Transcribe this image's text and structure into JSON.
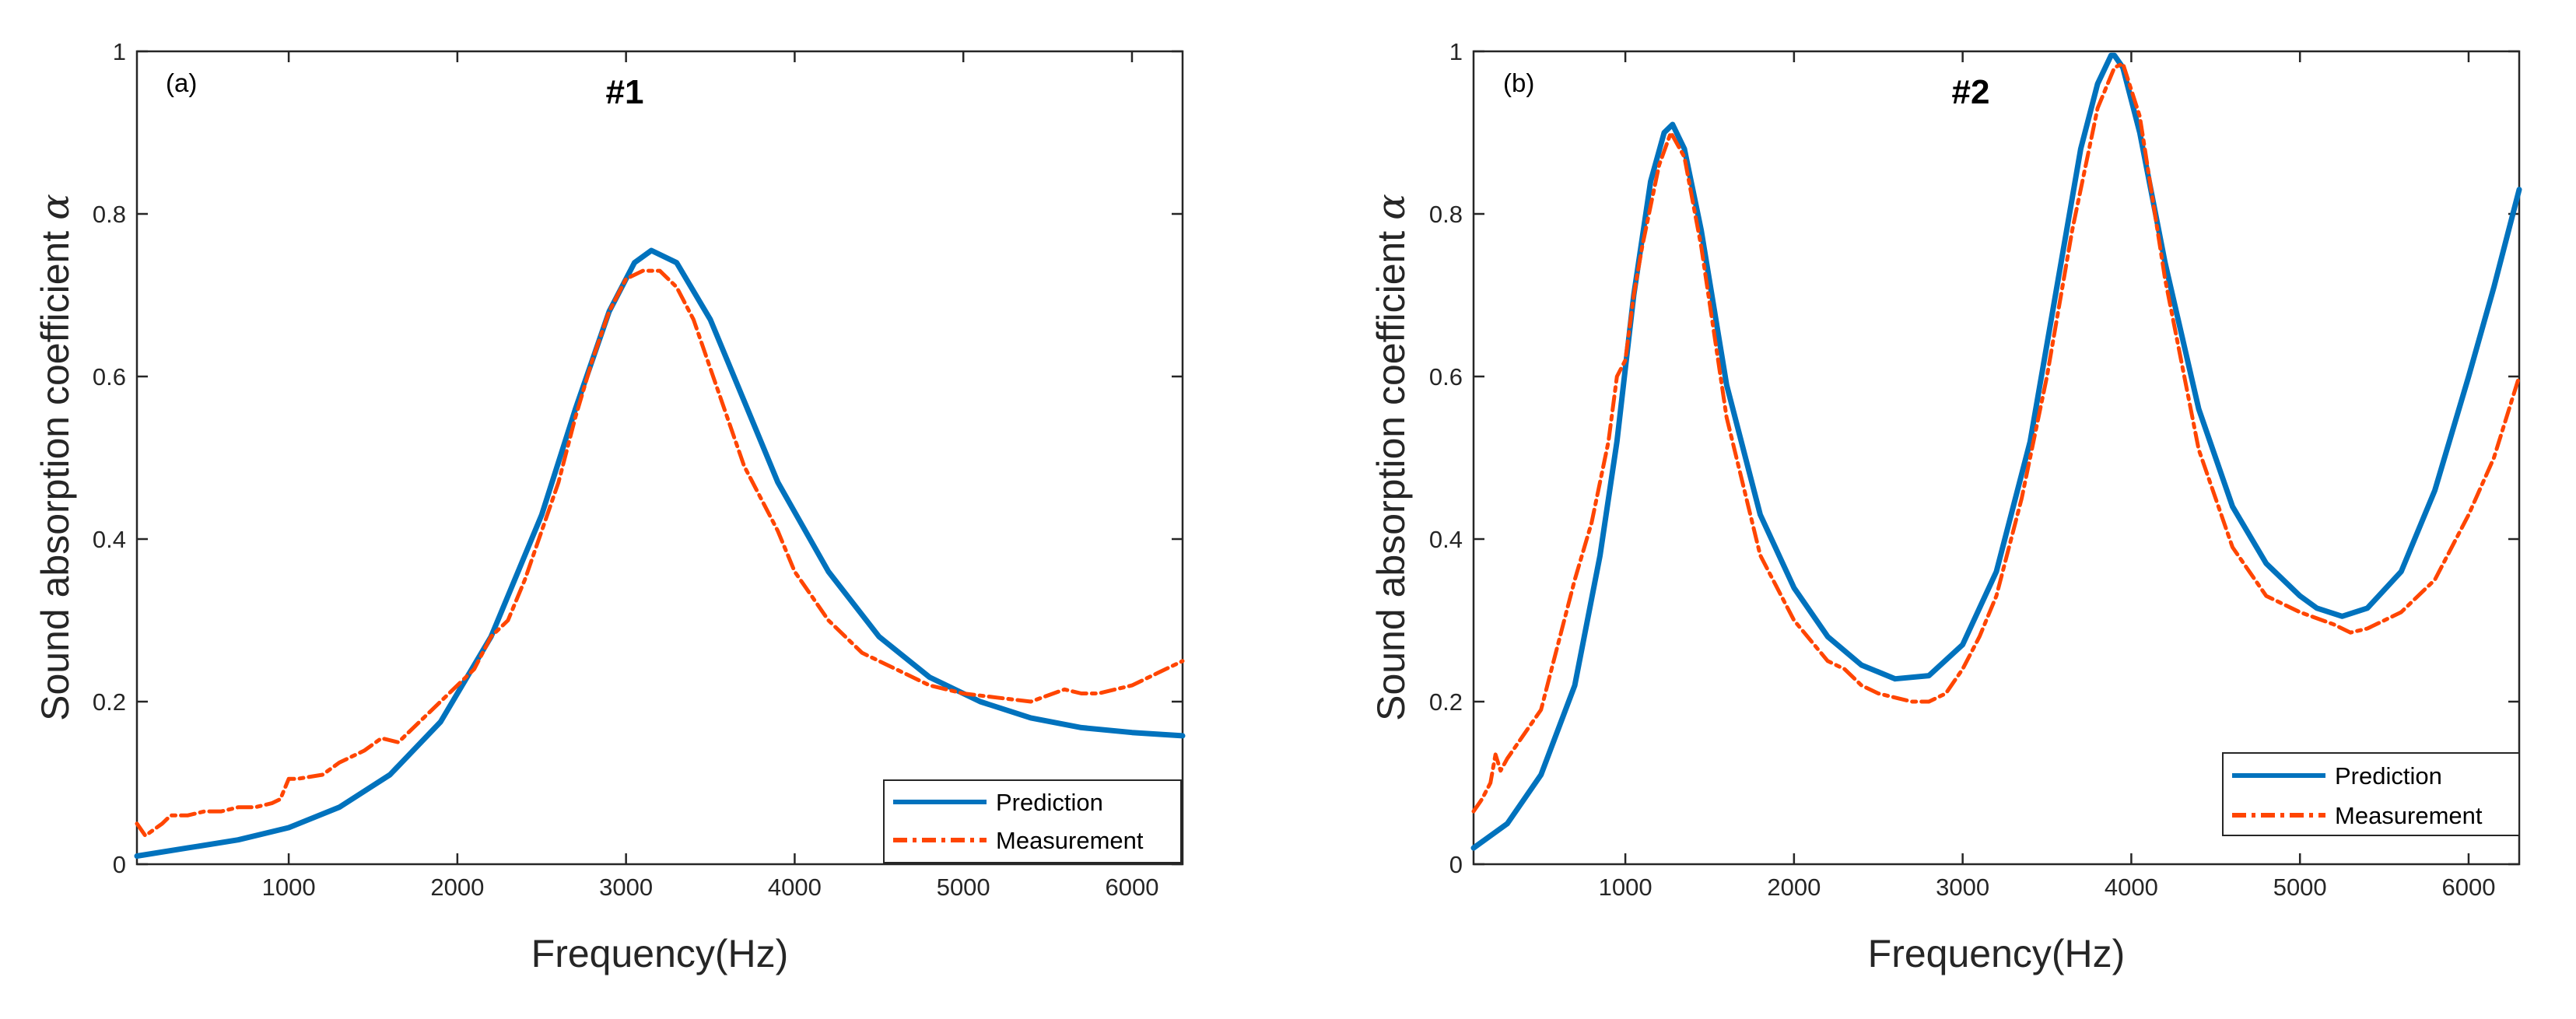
{
  "colors": {
    "prediction": "#0072BD",
    "measurement": "#FF4500",
    "axes": "#262626"
  },
  "chart_data": [
    {
      "type": "line",
      "panel_label": "(a)",
      "title": "#1",
      "xlabel": "Frequency(Hz)",
      "ylabel": "Sound absorption coefficient",
      "ylabel_symbol": "α",
      "xlim": [
        100,
        6300
      ],
      "ylim": [
        0,
        1
      ],
      "xticks": [
        1000,
        2000,
        3000,
        4000,
        5000,
        6000
      ],
      "yticks": [
        0,
        0.2,
        0.4,
        0.6,
        0.8,
        1
      ],
      "ytick_labels": [
        "0",
        "0.2",
        "0.4",
        "0.6",
        "0.8",
        "1"
      ],
      "legend_position": "bottom-right",
      "series": [
        {
          "name": "Prediction",
          "style": "solid",
          "x": [
            100,
            400,
            700,
            1000,
            1300,
            1600,
            1900,
            2200,
            2500,
            2700,
            2900,
            3050,
            3150,
            3300,
            3500,
            3700,
            3900,
            4200,
            4500,
            4800,
            5100,
            5400,
            5700,
            6000,
            6300
          ],
          "y": [
            0.01,
            0.02,
            0.03,
            0.045,
            0.07,
            0.11,
            0.175,
            0.28,
            0.43,
            0.56,
            0.68,
            0.74,
            0.755,
            0.74,
            0.67,
            0.57,
            0.47,
            0.36,
            0.28,
            0.23,
            0.2,
            0.18,
            0.168,
            0.162,
            0.158
          ]
        },
        {
          "name": "Measurement",
          "style": "dashdot",
          "x": [
            100,
            150,
            250,
            300,
            400,
            500,
            600,
            700,
            800,
            900,
            950,
            1000,
            1050,
            1200,
            1300,
            1450,
            1550,
            1650,
            1700,
            1800,
            1900,
            2000,
            2100,
            2200,
            2300,
            2400,
            2500,
            2600,
            2700,
            2800,
            2900,
            3000,
            3100,
            3200,
            3300,
            3400,
            3500,
            3600,
            3700,
            3800,
            3900,
            4000,
            4100,
            4200,
            4400,
            4600,
            4800,
            5000,
            5200,
            5400,
            5600,
            5700,
            5800,
            6000,
            6150,
            6300
          ],
          "y": [
            0.05,
            0.035,
            0.05,
            0.06,
            0.06,
            0.065,
            0.065,
            0.07,
            0.07,
            0.075,
            0.08,
            0.105,
            0.105,
            0.11,
            0.125,
            0.14,
            0.155,
            0.15,
            0.16,
            0.18,
            0.2,
            0.22,
            0.24,
            0.28,
            0.3,
            0.35,
            0.41,
            0.47,
            0.55,
            0.62,
            0.68,
            0.72,
            0.73,
            0.73,
            0.71,
            0.67,
            0.61,
            0.55,
            0.49,
            0.45,
            0.41,
            0.36,
            0.33,
            0.3,
            0.26,
            0.24,
            0.22,
            0.21,
            0.205,
            0.2,
            0.215,
            0.21,
            0.21,
            0.22,
            0.235,
            0.25
          ]
        }
      ]
    },
    {
      "type": "line",
      "panel_label": "(b)",
      "title": "#2",
      "xlabel": "Frequency(Hz)",
      "ylabel": "Sound absorption coefficient",
      "ylabel_symbol": "α",
      "xlim": [
        100,
        6300
      ],
      "ylim": [
        0,
        1
      ],
      "xticks": [
        1000,
        2000,
        3000,
        4000,
        5000,
        6000
      ],
      "yticks": [
        0,
        0.2,
        0.4,
        0.6,
        0.8,
        1
      ],
      "ytick_labels": [
        "0",
        "0.2",
        "0.4",
        "0.6",
        "0.8",
        "1"
      ],
      "legend_position": "bottom-right",
      "series": [
        {
          "name": "Prediction",
          "style": "solid",
          "x": [
            100,
            300,
            500,
            700,
            850,
            950,
            1050,
            1150,
            1230,
            1280,
            1350,
            1450,
            1600,
            1800,
            2000,
            2200,
            2400,
            2600,
            2800,
            3000,
            3200,
            3400,
            3550,
            3700,
            3800,
            3880,
            3900,
            3950,
            4050,
            4200,
            4400,
            4600,
            4800,
            5000,
            5100,
            5250,
            5400,
            5600,
            5800,
            6000,
            6150,
            6300
          ],
          "y": [
            0.02,
            0.05,
            0.11,
            0.22,
            0.38,
            0.52,
            0.7,
            0.84,
            0.9,
            0.91,
            0.88,
            0.78,
            0.59,
            0.43,
            0.34,
            0.28,
            0.245,
            0.228,
            0.232,
            0.27,
            0.36,
            0.52,
            0.7,
            0.88,
            0.96,
            0.995,
            0.995,
            0.98,
            0.9,
            0.74,
            0.56,
            0.44,
            0.37,
            0.33,
            0.315,
            0.305,
            0.315,
            0.36,
            0.46,
            0.6,
            0.71,
            0.83
          ]
        },
        {
          "name": "Measurement",
          "style": "dashdot",
          "x": [
            100,
            150,
            200,
            230,
            260,
            300,
            400,
            500,
            600,
            700,
            800,
            900,
            950,
            1000,
            1050,
            1100,
            1200,
            1270,
            1350,
            1450,
            1600,
            1800,
            2000,
            2200,
            2300,
            2400,
            2500,
            2600,
            2700,
            2800,
            2900,
            3000,
            3100,
            3200,
            3350,
            3500,
            3650,
            3800,
            3900,
            3950,
            4050,
            4200,
            4400,
            4600,
            4800,
            5000,
            5200,
            5300,
            5400,
            5600,
            5800,
            6000,
            6150,
            6300
          ],
          "y": [
            0.065,
            0.08,
            0.1,
            0.135,
            0.115,
            0.13,
            0.16,
            0.19,
            0.27,
            0.35,
            0.42,
            0.52,
            0.6,
            0.62,
            0.7,
            0.76,
            0.86,
            0.9,
            0.87,
            0.76,
            0.55,
            0.38,
            0.3,
            0.25,
            0.24,
            0.22,
            0.21,
            0.205,
            0.2,
            0.2,
            0.21,
            0.24,
            0.28,
            0.33,
            0.45,
            0.6,
            0.78,
            0.93,
            0.98,
            0.985,
            0.92,
            0.72,
            0.51,
            0.39,
            0.33,
            0.31,
            0.295,
            0.285,
            0.29,
            0.31,
            0.35,
            0.43,
            0.5,
            0.6
          ]
        }
      ]
    }
  ]
}
